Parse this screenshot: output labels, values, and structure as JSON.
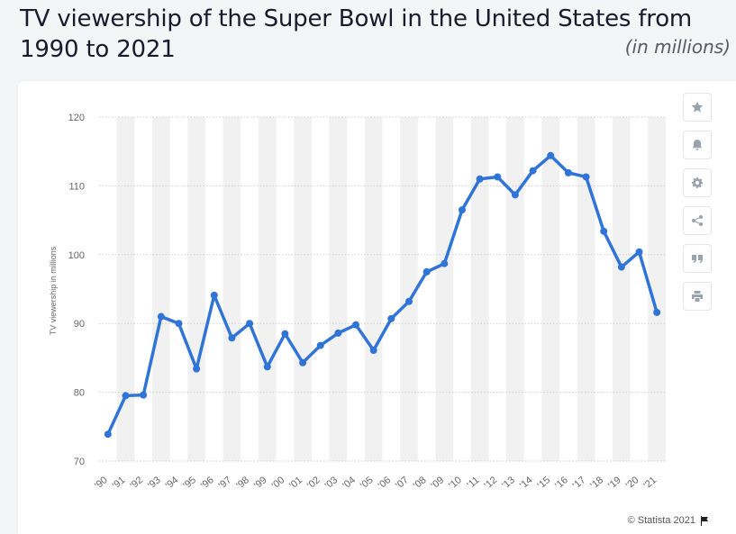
{
  "title": "TV viewership of the Super Bowl in the United States from 1990 to 2021",
  "subtitle": "(in millions)",
  "credit": "© Statista 2021",
  "toolbar": [
    "star-icon",
    "bell-icon",
    "gear-icon",
    "share-icon",
    "quote-icon",
    "print-icon"
  ],
  "colors": {
    "line": "#2f74d6",
    "stripe": "#f1f1f1",
    "grid": "#cfcfcf"
  },
  "chart_data": {
    "type": "line",
    "title": "TV viewership of the Super Bowl in the United States from 1990 to 2021",
    "xlabel": "",
    "ylabel": "TV viewership in millions",
    "ylim": [
      70,
      120
    ],
    "yticks": [
      70,
      80,
      90,
      100,
      110,
      120
    ],
    "grid": true,
    "categories": [
      "'90",
      "'91",
      "'92",
      "'93",
      "'94",
      "'95",
      "'96",
      "'97",
      "'98",
      "'99",
      "'00",
      "'01",
      "'02",
      "'03",
      "'04",
      "'05",
      "'06",
      "'07",
      "'08",
      "'09",
      "'10",
      "'11",
      "'12",
      "'13",
      "'14",
      "'15",
      "'16",
      "'17",
      "'18",
      "'19",
      "'20",
      "'21"
    ],
    "series": [
      {
        "values": [
          73.9,
          79.5,
          79.6,
          91.0,
          90.0,
          83.4,
          94.1,
          87.9,
          90.0,
          83.7,
          88.5,
          84.3,
          86.8,
          88.6,
          89.8,
          86.1,
          90.7,
          93.2,
          97.5,
          98.7,
          106.5,
          111.0,
          111.3,
          108.7,
          112.2,
          114.4,
          111.9,
          111.3,
          103.4,
          98.2,
          100.4,
          91.6
        ]
      }
    ]
  }
}
